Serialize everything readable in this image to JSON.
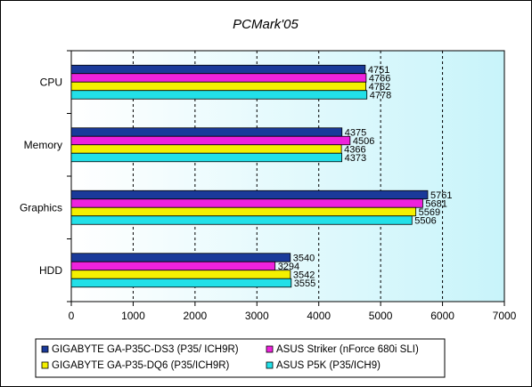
{
  "chart_data": {
    "type": "bar",
    "orientation": "horizontal",
    "title": "PCMark'05",
    "categories": [
      "CPU",
      "Memory",
      "Graphics",
      "HDD"
    ],
    "series": [
      {
        "name": "GIGABYTE GA-P35C-DS3 (P35/ ICH9R)",
        "color": "#1a3a9a",
        "values": [
          4751,
          4375,
          5761,
          3540
        ]
      },
      {
        "name": "ASUS Striker (nForce 680i SLI)",
        "color": "#ee22dd",
        "values": [
          4766,
          4506,
          5681,
          3294
        ]
      },
      {
        "name": "GIGABYTE GA-P35-DQ6 (P35/ICH9R)",
        "color": "#f4f000",
        "values": [
          4762,
          4366,
          5569,
          3542
        ]
      },
      {
        "name": "ASUS P5K (P35/ICH9)",
        "color": "#22e0e8",
        "values": [
          4778,
          4373,
          5506,
          3555
        ]
      }
    ],
    "xlim": [
      0,
      7000
    ],
    "xticks": [
      0,
      1000,
      2000,
      3000,
      4000,
      5000,
      6000,
      7000
    ],
    "grid": true,
    "legend_position": "bottom"
  }
}
